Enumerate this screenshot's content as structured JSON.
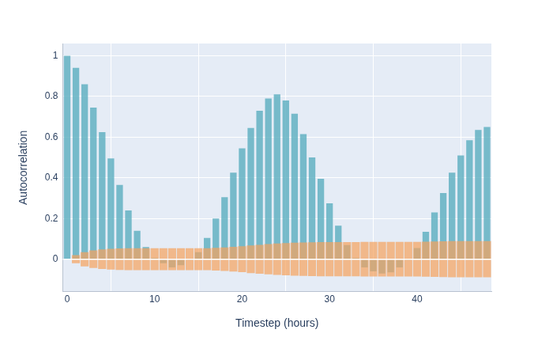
{
  "chart_data": {
    "type": "bar",
    "x_label": "Timestep (hours)",
    "y_label": "Autocorrelation",
    "x": [
      0,
      1,
      2,
      3,
      4,
      5,
      6,
      7,
      8,
      9,
      10,
      11,
      12,
      13,
      14,
      15,
      16,
      17,
      18,
      19,
      20,
      21,
      22,
      23,
      24,
      25,
      26,
      27,
      28,
      29,
      30,
      31,
      32,
      33,
      34,
      35,
      36,
      37,
      38,
      39,
      40,
      41,
      42,
      43,
      44,
      45,
      46,
      47,
      48
    ],
    "values": [
      1.0,
      0.94,
      0.86,
      0.745,
      0.625,
      0.495,
      0.365,
      0.24,
      0.14,
      0.06,
      0.005,
      -0.02,
      -0.04,
      -0.03,
      -0.005,
      0.035,
      0.105,
      0.2,
      0.305,
      0.425,
      0.545,
      0.645,
      0.73,
      0.79,
      0.81,
      0.78,
      0.715,
      0.615,
      0.5,
      0.395,
      0.275,
      0.165,
      0.07,
      0.005,
      -0.04,
      -0.06,
      -0.07,
      -0.065,
      -0.04,
      -0.005,
      0.055,
      0.135,
      0.23,
      0.325,
      0.425,
      0.51,
      0.585,
      0.635,
      0.65
    ],
    "color": "#5aaebf",
    "interval": {
      "lower": [
        null,
        -0.02,
        -0.035,
        -0.043,
        -0.048,
        -0.051,
        -0.053,
        -0.054,
        -0.054,
        -0.054,
        -0.054,
        -0.054,
        -0.054,
        -0.054,
        -0.054,
        -0.054,
        -0.054,
        -0.056,
        -0.058,
        -0.061,
        -0.064,
        -0.068,
        -0.071,
        -0.074,
        -0.077,
        -0.079,
        -0.081,
        -0.082,
        -0.083,
        -0.084,
        -0.084,
        -0.084,
        -0.084,
        -0.084,
        -0.085,
        -0.085,
        -0.085,
        -0.085,
        -0.085,
        -0.085,
        -0.085,
        -0.086,
        -0.087,
        -0.088,
        -0.089,
        -0.089,
        -0.089,
        -0.089,
        -0.089
      ],
      "upper": [
        null,
        0.02,
        0.035,
        0.043,
        0.048,
        0.051,
        0.053,
        0.054,
        0.054,
        0.054,
        0.054,
        0.054,
        0.054,
        0.054,
        0.054,
        0.054,
        0.054,
        0.056,
        0.058,
        0.061,
        0.064,
        0.068,
        0.071,
        0.074,
        0.077,
        0.079,
        0.081,
        0.082,
        0.083,
        0.084,
        0.084,
        0.084,
        0.084,
        0.084,
        0.085,
        0.085,
        0.085,
        0.085,
        0.085,
        0.085,
        0.085,
        0.086,
        0.087,
        0.088,
        0.089,
        0.089,
        0.089,
        0.089,
        0.089
      ],
      "color": "#f7a35c"
    },
    "xlim": [
      -0.5,
      48.5
    ],
    "xticks": [
      0,
      10,
      20,
      30,
      40
    ],
    "ylim": [
      -0.16,
      1.06
    ],
    "yticks": [
      0,
      0.2,
      0.4,
      0.6,
      0.8,
      1
    ],
    "grid": true
  }
}
